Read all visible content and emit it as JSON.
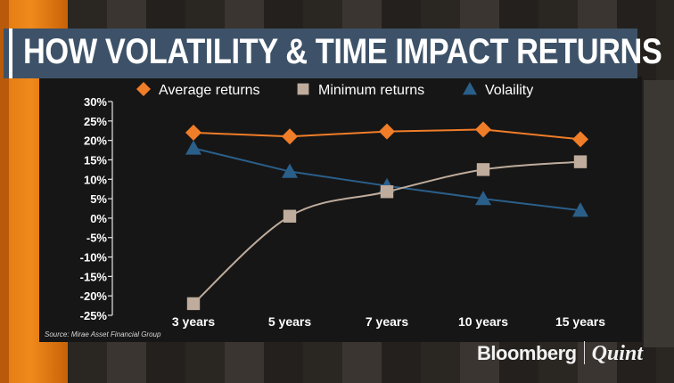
{
  "title": "HOW VOLATILITY & TIME IMPACT RETURNS",
  "source": "Source: Mirae Asset Financial Group",
  "logo": {
    "left": "Bloomberg",
    "right": "Quint"
  },
  "colors": {
    "average": "#f07d28",
    "minimum": "#bfac9c",
    "volatility": "#2a5f8a",
    "banner": "#3d5268"
  },
  "chart_data": {
    "type": "line",
    "title": "HOW VOLATILITY & TIME IMPACT RETURNS",
    "categories": [
      "3 years",
      "5 years",
      "7 years",
      "10 years",
      "15 years"
    ],
    "series": [
      {
        "name": "Average returns",
        "marker": "diamond",
        "smooth": false,
        "values": [
          22,
          21,
          22.3,
          22.8,
          20.3
        ]
      },
      {
        "name": "Minimum returns",
        "marker": "square",
        "smooth": true,
        "values": [
          -22,
          0.5,
          6.8,
          12.5,
          14.5
        ]
      },
      {
        "name": "Volaility",
        "marker": "triangle",
        "smooth": false,
        "values": [
          18,
          12,
          8.3,
          5,
          2
        ]
      }
    ],
    "yticks": [
      "30%",
      "25%",
      "20%",
      "15%",
      "10%",
      "5%",
      "0%",
      "-5%",
      "-10%",
      "-15%",
      "-20%",
      "-25%"
    ],
    "ylim": [
      -25,
      30
    ],
    "xlabel": "",
    "ylabel": "",
    "grid": false,
    "legend": "top"
  }
}
